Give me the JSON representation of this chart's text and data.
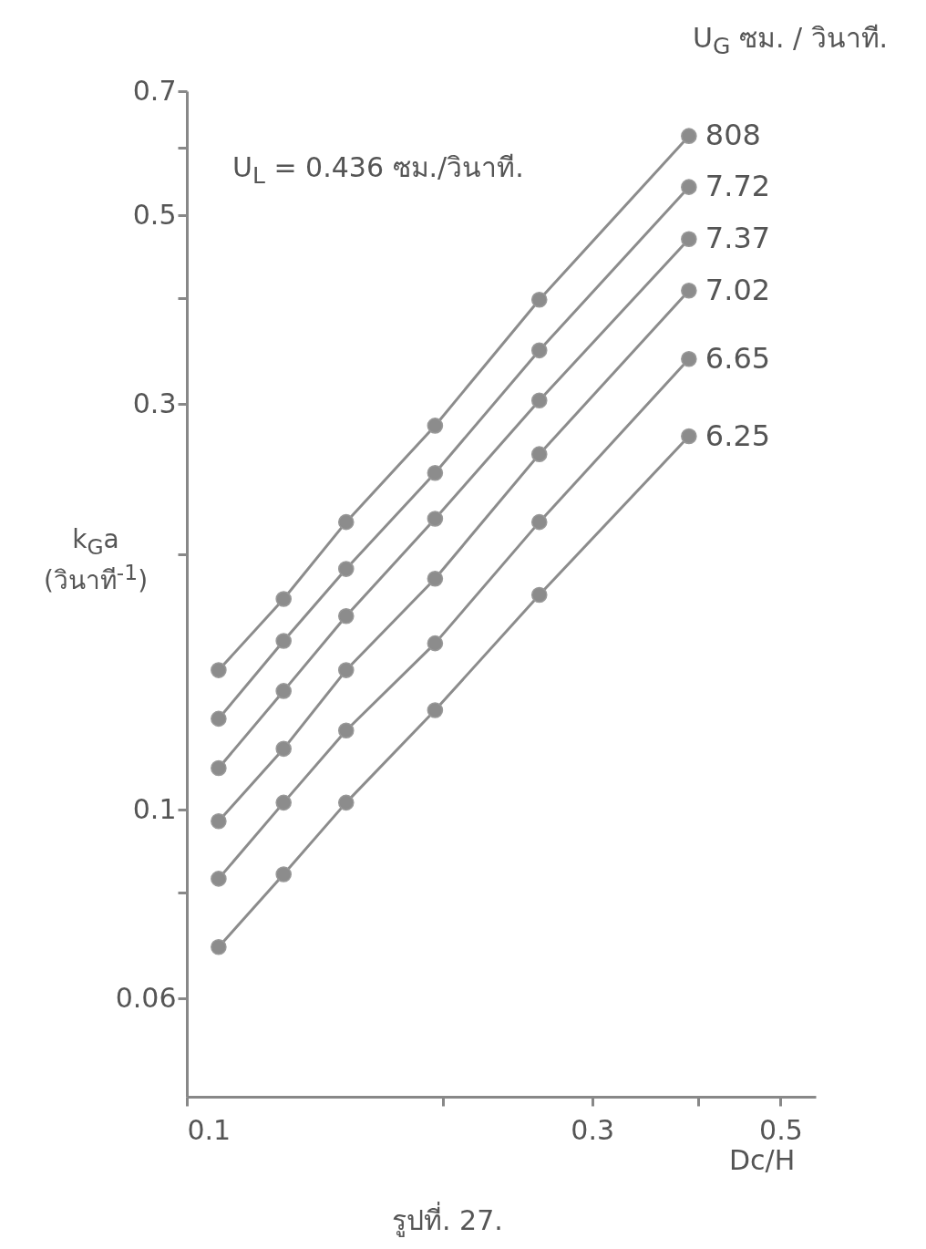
{
  "chart_data": {
    "type": "line",
    "xlabel": "Dc/H",
    "ylabel": "k$_{G}$a (วินาที$^{-1}$)",
    "legend_title": "U$_{G}$ ซม. / วินาที.",
    "annotations": [
      "U$_{L}$ = 0.436 ซม./วินาที.",
      "รูปที่. 27."
    ],
    "log": "xy",
    "marker": "circle",
    "line_style": "solid",
    "xlim": [
      0.1,
      0.55
    ],
    "xticks": [
      0.1,
      {
        "value": 0.2,
        "label": null
      },
      0.3,
      {
        "value": 0.4,
        "label": null
      },
      0.5
    ],
    "ylim": [
      0.046,
      0.7
    ],
    "yticks": [
      0.06,
      {
        "value": 0.08,
        "label": null
      },
      0.1,
      {
        "value": 0.2,
        "label": null
      },
      0.3,
      {
        "value": 0.4,
        "label": null
      },
      0.5,
      {
        "value": 0.6,
        "label": null
      },
      0.7
    ],
    "x": [
      0.109,
      0.13,
      0.154,
      0.196,
      0.26,
      0.39
    ],
    "series": [
      {
        "name": "808",
        "color": "#8c8c8c",
        "values": [
          0.146,
          0.177,
          0.218,
          0.283,
          0.398,
          0.62
        ]
      },
      {
        "name": "7.72",
        "color": "#8c8c8c",
        "values": [
          0.128,
          0.158,
          0.192,
          0.249,
          0.347,
          0.54
        ]
      },
      {
        "name": "7.37",
        "color": "#8c8c8c",
        "values": [
          0.112,
          0.138,
          0.169,
          0.22,
          0.303,
          0.469
        ]
      },
      {
        "name": "7.02",
        "color": "#8c8c8c",
        "values": [
          0.097,
          0.118,
          0.146,
          0.187,
          0.262,
          0.408
        ]
      },
      {
        "name": "6.65",
        "color": "#8c8c8c",
        "values": [
          0.083,
          0.102,
          0.124,
          0.157,
          0.218,
          0.339
        ]
      },
      {
        "name": "6.25",
        "color": "#8c8c8c",
        "values": [
          0.069,
          0.084,
          0.102,
          0.131,
          0.179,
          0.275
        ]
      }
    ]
  }
}
